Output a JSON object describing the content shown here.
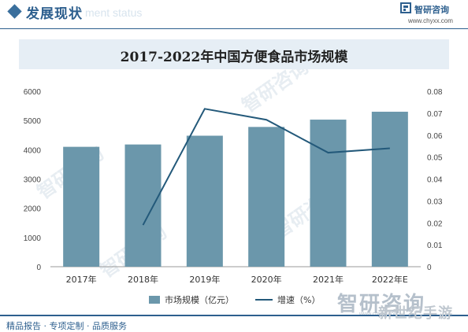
{
  "header": {
    "section_title": "发展现状",
    "section_watermark": "ment status",
    "brand": "智研咨询",
    "website": "www.chyxx.com",
    "accent_color": "#2d5f8e",
    "logo_icon": "chyxx-logo-icon"
  },
  "chart_data": {
    "type": "bar",
    "title": "2017-2022年中国方便食品市场规模",
    "categories": [
      "2017年",
      "2018年",
      "2019年",
      "2020年",
      "2021年",
      "2022年E"
    ],
    "series": [
      {
        "name": "市场规模（亿元）",
        "type": "bar",
        "axis": "left",
        "color": "#6b97ab",
        "values": [
          4100,
          4180,
          4480,
          4780,
          5030,
          5300
        ]
      },
      {
        "name": "增速（%）",
        "type": "line",
        "axis": "right",
        "color": "#23597a",
        "values": [
          null,
          0.019,
          0.072,
          0.067,
          0.052,
          0.054
        ]
      }
    ],
    "y_left": {
      "min": 0,
      "max": 6000,
      "ticks": [
        "0",
        "1000",
        "2000",
        "3000",
        "4000",
        "5000",
        "6000"
      ]
    },
    "y_right": {
      "min": 0,
      "max": 0.08,
      "ticks": [
        "0",
        "0.01",
        "0.02",
        "0.03",
        "0.04",
        "0.05",
        "0.06",
        "0.07",
        "0.08"
      ]
    },
    "grid": false,
    "legend_position": "bottom"
  },
  "watermark": {
    "text": "智研咨询",
    "sub": "www.chyxx.com",
    "corner_text": "新世纪手游"
  },
  "footer": {
    "text": "精品报告 · 专项定制 · 品质服务"
  }
}
